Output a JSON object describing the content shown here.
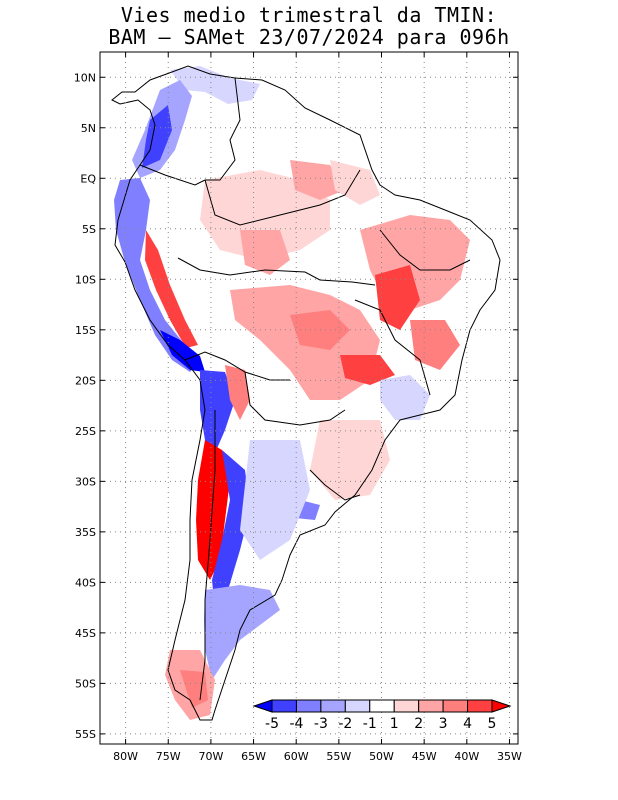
{
  "title": {
    "line1": "Vies medio trimestral da TMIN:",
    "line2": "BAM – SAMet 23/07/2024  para 096h"
  },
  "map": {
    "lat_labels": [
      "10N",
      "5N",
      "EQ",
      "5S",
      "10S",
      "15S",
      "20S",
      "25S",
      "30S",
      "35S",
      "40S",
      "45S",
      "50S",
      "55S"
    ],
    "lon_labels": [
      "80W",
      "75W",
      "70W",
      "65W",
      "60W",
      "55W",
      "50W",
      "45W",
      "40W",
      "35W"
    ],
    "lon_range": [
      -83,
      -34
    ],
    "lat_range": [
      12.5,
      -56
    ],
    "grid": true
  },
  "colorbar": {
    "labels": [
      "-5",
      "-4",
      "-3",
      "-2",
      "-1",
      "1",
      "2",
      "3",
      "4",
      "5"
    ],
    "colors": [
      "#0000ff",
      "#4040ff",
      "#7f7fff",
      "#a5a5ff",
      "#d6d6ff",
      "#ffffff",
      "#ffd6d6",
      "#ffa5a5",
      "#ff7f7f",
      "#ff4040",
      "#ff0000"
    ]
  }
}
